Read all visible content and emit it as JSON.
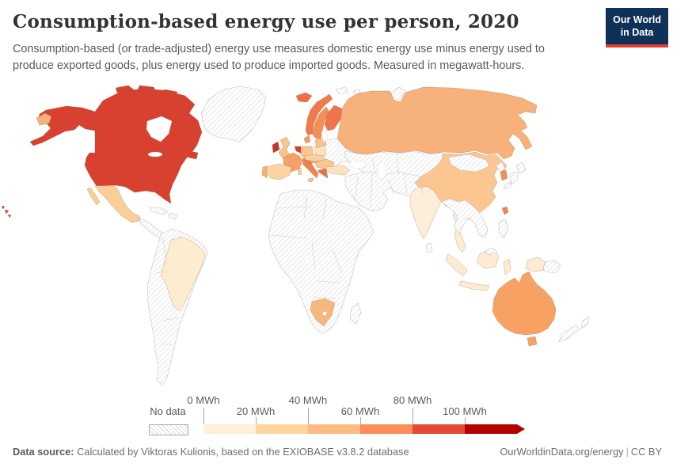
{
  "header": {
    "title": "Consumption-based energy use per person, 2020",
    "subtitle": "Consumption-based (or trade-adjusted) energy use measures domestic energy use minus energy used to produce exported goods, plus energy used to produce imported goods. Measured in megawatt-hours.",
    "logo": {
      "line1": "Our World",
      "line2": "in Data",
      "bg_color": "#0f3057",
      "accent_color": "#e23d33"
    }
  },
  "legend": {
    "no_data_label": "No data",
    "ticks": [
      "0 MWh",
      "20 MWh",
      "40 MWh",
      "60 MWh",
      "80 MWh",
      "100 MWh"
    ],
    "colors": [
      "#fef0d9",
      "#fdd49e",
      "#fdbb84",
      "#fc8d59",
      "#e34a33",
      "#b30000"
    ]
  },
  "map": {
    "region_colors": {
      "canada": "#d8402f",
      "usa": "#d8402f",
      "hawaii": "#d8402f",
      "mexico": "#f9cf97",
      "brazil": "#fdeccf",
      "russia": "#f7b17a",
      "iceland": "#ee6f47",
      "norway": "#ef7a4b",
      "sweden": "#f39058",
      "finland": "#ee744c",
      "denmark": "#f29a60",
      "uk": "#f9c38c",
      "ireland": "#c0372a",
      "benelux": "#cd4530",
      "germany": "#fbc594",
      "france": "#f5a066",
      "spain": "#fbd4a6",
      "portugal": "#f6b077",
      "italy": "#ef8350",
      "sicily": "#f7c090",
      "sardinia": "#f9cd9e",
      "greece": "#ee6f4a",
      "switzerland": "#ef8a55",
      "austria": "#f5a368",
      "central_europe": "#fbcf9f",
      "poland": "#fde2c0",
      "baltics": "#f8c291",
      "balkans": "#f9c591",
      "turkey": "#fce2bf",
      "india": "#fdeedb",
      "china": "#fbc68f",
      "south_korea": "#f19058",
      "taiwan": "#ee8450",
      "thailand": "#fdebd2",
      "indonesia": "#fdebd2",
      "papua_indonesia": "#fdebd2",
      "australia": "#f7a163",
      "south_africa": "#f6b77e"
    },
    "no_data_regions": [
      "greenland",
      "svalbard",
      "novaya_zemlya",
      "central_america",
      "cuba",
      "hispaniola",
      "south_america",
      "africa",
      "madagascar",
      "east_europe",
      "central_asia",
      "middle_east",
      "mongolia",
      "se_asia",
      "north_korea",
      "japan",
      "philippines",
      "sri_lanka",
      "png",
      "new_zealand",
      "malaysia_borneo"
    ]
  },
  "footer": {
    "source_label": "Data source:",
    "source_text": " Calculated by Viktoras Kulionis, based on the EXIOBASE v3.8.2 database",
    "site": "OurWorldinData.org/energy",
    "separator": "|",
    "license": "CC BY"
  },
  "chart_data": {
    "type": "heatmap",
    "subtype": "choropleth_world_map",
    "title": "Consumption-based energy use per person, 2020",
    "unit": "MWh",
    "bin_edges_mwh": [
      0,
      20,
      40,
      60,
      80,
      100
    ],
    "bin_colors": [
      "#fef0d9",
      "#fdd49e",
      "#fdbb84",
      "#fc8d59",
      "#e34a33",
      "#b30000"
    ],
    "no_data_style": "diagonal hatching",
    "legend_position": "bottom",
    "regions_by_bin": {
      "0-20 MWh": [
        "Brazil",
        "India",
        "Thailand",
        "Indonesia"
      ],
      "20-40 MWh": [
        "Mexico",
        "Spain",
        "Poland",
        "Turkey",
        "China",
        "Czechia/Hungary region"
      ],
      "40-60 MWh": [
        "Russia",
        "South Africa",
        "United Kingdom",
        "France",
        "Germany",
        "Sweden",
        "Denmark",
        "Portugal",
        "Baltic states",
        "Balkan states"
      ],
      "60-80 MWh": [
        "Australia",
        "South Korea",
        "Taiwan",
        "Italy",
        "Greece",
        "Norway",
        "Finland",
        "Iceland",
        "Switzerland",
        "Austria"
      ],
      "80-100 MWh": [
        "United States",
        "Canada",
        "Ireland",
        "Belgium/Netherlands"
      ],
      "no_data": [
        "Greenland",
        "Most of Africa",
        "Most of South America",
        "Central America",
        "Cuba",
        "Middle East",
        "Central Asia",
        "Ukraine/Belarus region",
        "Mongolia",
        "Japan",
        "North Korea",
        "Vietnam/Myanmar region",
        "Philippines",
        "Papua New Guinea",
        "New Zealand",
        "Madagascar",
        "Sri Lanka"
      ]
    }
  }
}
